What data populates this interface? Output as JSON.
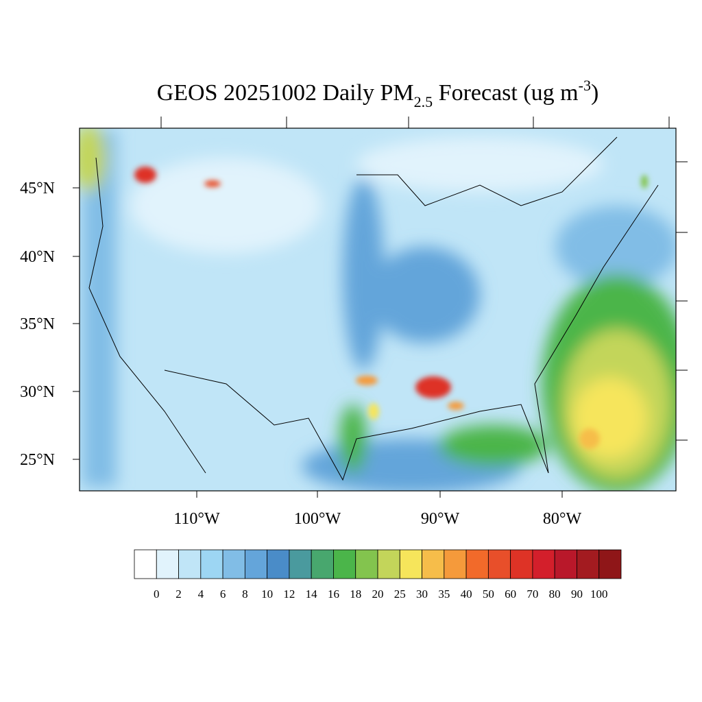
{
  "header": {
    "title_main": "GEOS 20251002 Daily PM",
    "title_sub": "2.5",
    "title_rest": " Forecast (ug m",
    "title_sup": "-3",
    "title_end": ")"
  },
  "map": {
    "lat_labels": [
      "45°N",
      "40°N",
      "35°N",
      "30°N",
      "25°N"
    ],
    "lon_labels": [
      "110°W",
      "100°W",
      "90°W",
      "80°W"
    ]
  },
  "colorbar": {
    "levels": [
      0,
      2,
      4,
      6,
      8,
      10,
      12,
      14,
      16,
      18,
      20,
      25,
      30,
      35,
      40,
      50,
      60,
      70,
      80,
      90,
      100
    ],
    "colors": [
      "#ffffff",
      "#e1f3fc",
      "#c0e5f7",
      "#9dd6f3",
      "#81bde6",
      "#64a5da",
      "#4a8cc8",
      "#4a9a9e",
      "#48a76e",
      "#4bb54a",
      "#83c44e",
      "#c3d55a",
      "#f6e55b",
      "#f6bd4a",
      "#f59a3b",
      "#f26a2a",
      "#e84f2a",
      "#de3326",
      "#d31f2b",
      "#b9182a",
      "#a31b20",
      "#8f1618"
    ]
  }
}
